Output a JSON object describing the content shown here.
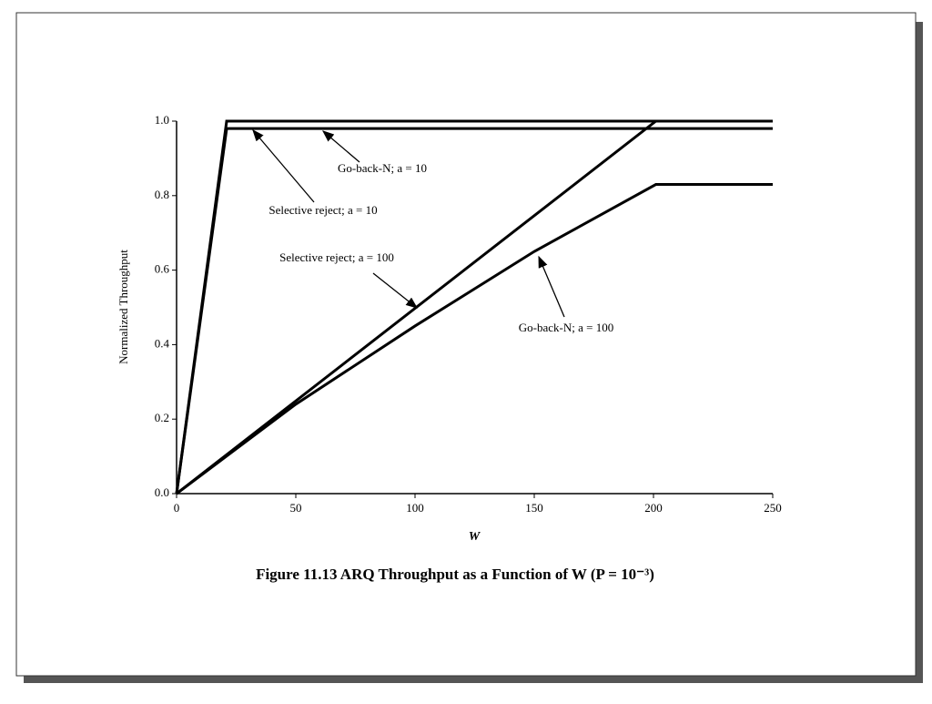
{
  "chart_data": {
    "type": "line",
    "title": "Figure 11.13   ARQ Throughput as a Function of W (P = 10⁻³)",
    "x_label": "W",
    "y_label": "Normalized Throughput",
    "xlim": [
      0,
      250
    ],
    "ylim": [
      0,
      1.0
    ],
    "xticks": [
      0,
      50,
      100,
      150,
      200,
      250
    ],
    "yticks": [
      {
        "value": 0,
        "label": "0.0"
      },
      {
        "value": 0.2,
        "label": "0.2"
      },
      {
        "value": 0.4,
        "label": "0.4"
      },
      {
        "value": 0.6,
        "label": "0.6"
      },
      {
        "value": 0.8,
        "label": "0.8"
      },
      {
        "value": 1.0,
        "label": "1.0"
      }
    ],
    "series": [
      {
        "name": "Selective reject; a = 10",
        "color": "#000000",
        "x": [
          0,
          21,
          250
        ],
        "values": [
          0,
          1.0,
          1.0
        ]
      },
      {
        "name": "Go-back-N; a = 10",
        "color": "#000000",
        "x": [
          0,
          21,
          250
        ],
        "values": [
          0,
          0.98,
          0.98
        ]
      },
      {
        "name": "Selective reject; a = 100",
        "color": "#000000",
        "x": [
          0,
          201,
          250
        ],
        "values": [
          0,
          1.0,
          1.0
        ]
      },
      {
        "name": "Go-back-N; a = 100",
        "color": "#000000",
        "x": [
          0,
          50,
          100,
          150,
          201,
          250
        ],
        "values": [
          0,
          0.24,
          0.45,
          0.65,
          0.83,
          0.83
        ]
      }
    ]
  }
}
